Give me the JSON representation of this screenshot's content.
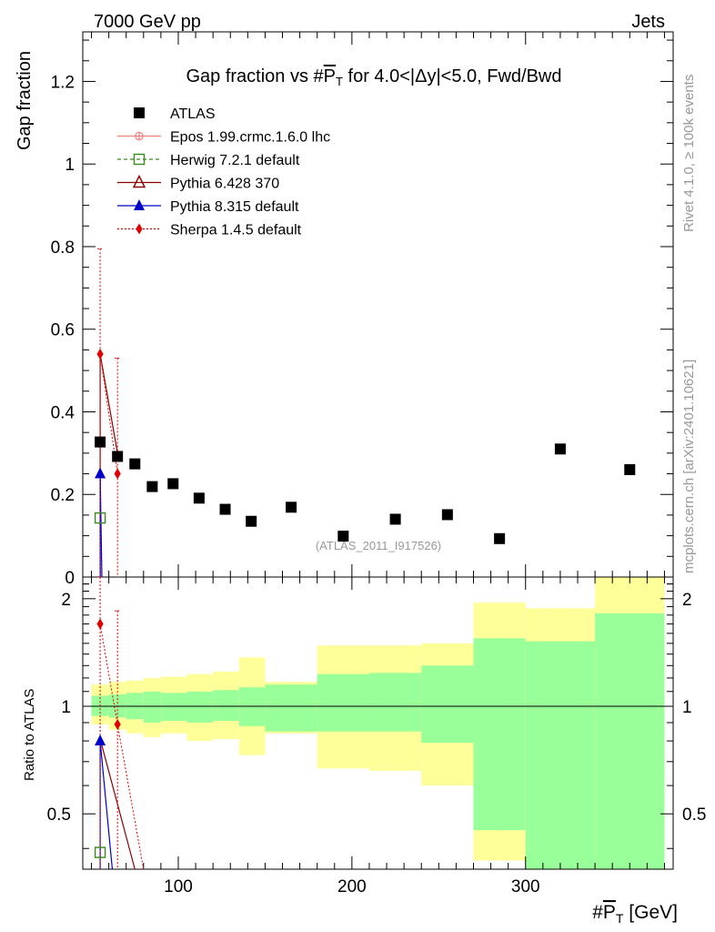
{
  "chart_data": {
    "type": "scatter",
    "header_left": "7000 GeV pp",
    "header_right": "Jets",
    "title": "Gap fraction vs #P̅T for 4.0<|Δy|<5.0, Fwd/Bwd",
    "title_parts": {
      "pre": "Gap fraction vs #",
      "sym": "P",
      "sub": "T",
      "post": " for 4.0<|Δy|<5.0, Fwd/Bwd"
    },
    "ylabel": "Gap fraction",
    "ratio_ylabel": "Ratio to ATLAS",
    "xlabel_parts": {
      "pre": "#",
      "sym": "P",
      "sub": "T",
      "post": " [GeV]"
    },
    "watermark": "(ATLAS_2011_I917526)",
    "side_label_top": "Rivet 4.1.0, ≥ 100k events",
    "side_label_bottom": "mcplots.cern.ch [arXiv:2401.10621]",
    "xlim": [
      45,
      385
    ],
    "ylim": [
      0,
      1.32
    ],
    "ratio_ylim": [
      0.35,
      2.3
    ],
    "x_ticks": [
      100,
      200,
      300
    ],
    "y_ticks": [
      0,
      0.2,
      0.4,
      0.6,
      0.8,
      1,
      1.2
    ],
    "y_tick_labels": [
      "0",
      "0.2",
      "0.4",
      "0.6",
      "0.8",
      "1",
      "1.2"
    ],
    "ratio_ticks": [
      0.5,
      1,
      2
    ],
    "ratio_tick_labels": [
      "0.5",
      "1",
      "2"
    ],
    "legend": [
      {
        "name": "ATLAS",
        "color": "#000000",
        "marker": "square-filled",
        "line": "none"
      },
      {
        "name": "Epos 1.99.crmc.1.6.0 lhc",
        "color": "#f08080",
        "marker": "cross-circle",
        "line": "solid"
      },
      {
        "name": "Herwig 7.2.1 default",
        "color": "#3a8a1a",
        "marker": "square-open",
        "line": "dashed"
      },
      {
        "name": "Pythia 6.428 370",
        "color": "#8b0000",
        "marker": "triangle-open",
        "line": "solid"
      },
      {
        "name": "Pythia 8.315 default",
        "color": "#0000cc",
        "marker": "triangle-filled",
        "line": "solid"
      },
      {
        "name": "Sherpa 1.4.5 default",
        "color": "#e00000",
        "marker": "diamond-filled",
        "line": "dotted"
      }
    ],
    "atlas": {
      "x": [
        55,
        65,
        75,
        85,
        97,
        112,
        127,
        142,
        165,
        195,
        225,
        255,
        285,
        320,
        360
      ],
      "y": [
        0.327,
        0.292,
        0.274,
        0.219,
        0.226,
        0.191,
        0.164,
        0.135,
        0.169,
        0.099,
        0.14,
        0.151,
        0.093,
        0.31,
        0.26
      ],
      "xlow": [
        50,
        60,
        70,
        80,
        90,
        105,
        120,
        135,
        150,
        180,
        210,
        240,
        270,
        300,
        340
      ],
      "xhigh": [
        60,
        70,
        80,
        90,
        105,
        120,
        135,
        150,
        180,
        210,
        240,
        270,
        300,
        340,
        380
      ],
      "band_inner_lo": [
        0.94,
        0.93,
        0.92,
        0.9,
        0.91,
        0.9,
        0.91,
        0.88,
        0.85,
        0.85,
        0.85,
        0.79,
        0.45,
        0.27,
        0.2
      ],
      "band_inner_hi": [
        1.07,
        1.08,
        1.09,
        1.1,
        1.09,
        1.1,
        1.11,
        1.13,
        1.15,
        1.23,
        1.24,
        1.3,
        1.55,
        1.52,
        1.82
      ],
      "band_outer_lo": [
        0.89,
        0.86,
        0.84,
        0.82,
        0.84,
        0.8,
        0.81,
        0.73,
        0.84,
        0.67,
        0.66,
        0.6,
        0.37,
        0.6,
        0.2
      ],
      "band_outer_hi": [
        1.15,
        1.17,
        1.18,
        1.2,
        1.21,
        1.23,
        1.25,
        1.37,
        1.17,
        1.48,
        1.48,
        1.5,
        1.95,
        1.88,
        2.3
      ]
    },
    "herwig": {
      "x": [
        55
      ],
      "y": [
        0.143
      ],
      "ratio": [
        0.39
      ]
    },
    "pythia6": {
      "x": [
        55,
        75
      ],
      "y": [
        0.54,
        0.1
      ],
      "ratio": [
        0.81,
        0.33
      ]
    },
    "pythia8": {
      "x": [
        55,
        62
      ],
      "y": [
        0.25,
        0.0
      ],
      "ratio": [
        0.8,
        0.35
      ]
    },
    "sherpa": {
      "x": [
        55,
        65
      ],
      "y": [
        0.54,
        0.25
      ],
      "yerr_hi": [
        0.795,
        0.53
      ],
      "ratio": [
        1.7,
        0.89
      ],
      "ratio_err_hi": [
        2.3,
        1.85
      ]
    }
  }
}
